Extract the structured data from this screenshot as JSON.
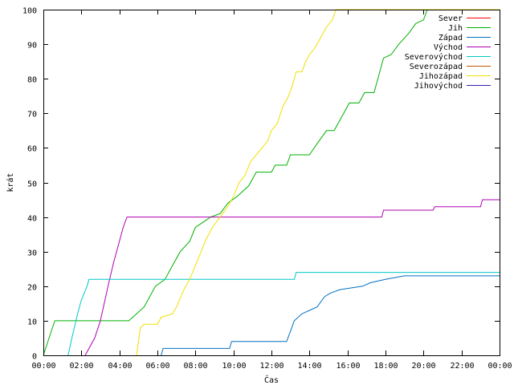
{
  "chart_data": {
    "type": "line",
    "title": "",
    "xlabel": "Čas",
    "ylabel": "krát",
    "xlim": [
      0,
      24
    ],
    "ylim": [
      0,
      100
    ],
    "x_ticks": [
      0,
      2,
      4,
      6,
      8,
      10,
      12,
      14,
      16,
      18,
      20,
      22,
      24
    ],
    "x_tick_labels": [
      "00:00",
      "02:00",
      "04:00",
      "06:00",
      "08:00",
      "10:00",
      "12:00",
      "14:00",
      "16:00",
      "18:00",
      "20:00",
      "22:00",
      "00:00"
    ],
    "y_ticks": [
      0,
      10,
      20,
      30,
      40,
      50,
      60,
      70,
      80,
      90,
      100
    ],
    "y_tick_labels": [
      "0",
      "10",
      "20",
      "30",
      "40",
      "50",
      "60",
      "70",
      "80",
      "90",
      "100"
    ],
    "grid": false,
    "legend_position": "top-right",
    "series": [
      {
        "name": "Sever",
        "color": "#ff0000",
        "points": []
      },
      {
        "name": "Jih",
        "color": "#00b000",
        "points": [
          [
            0,
            0
          ],
          [
            0.3,
            5
          ],
          [
            0.6,
            10
          ],
          [
            4.5,
            10
          ],
          [
            4.9,
            12
          ],
          [
            5.3,
            14
          ],
          [
            5.9,
            20
          ],
          [
            6.4,
            22
          ],
          [
            6.8,
            26
          ],
          [
            7.2,
            30
          ],
          [
            7.7,
            33
          ],
          [
            8.0,
            37
          ],
          [
            8.4,
            38.5
          ],
          [
            8.8,
            40
          ],
          [
            9.3,
            41
          ],
          [
            9.7,
            44
          ],
          [
            10.2,
            46
          ],
          [
            10.8,
            49
          ],
          [
            11.2,
            53
          ],
          [
            12.0,
            53
          ],
          [
            12.2,
            55
          ],
          [
            12.8,
            55
          ],
          [
            13.0,
            58
          ],
          [
            14.0,
            58
          ],
          [
            14.5,
            62
          ],
          [
            14.9,
            65
          ],
          [
            15.3,
            65
          ],
          [
            15.6,
            68
          ],
          [
            16.1,
            73
          ],
          [
            16.6,
            73
          ],
          [
            16.9,
            76
          ],
          [
            17.4,
            76
          ],
          [
            17.9,
            86
          ],
          [
            18.3,
            87
          ],
          [
            18.7,
            90
          ],
          [
            19.2,
            93
          ],
          [
            19.6,
            96
          ],
          [
            20.0,
            97
          ],
          [
            20.2,
            100
          ],
          [
            24,
            100
          ]
        ]
      },
      {
        "name": "Západ",
        "color": "#0070c0",
        "points": [
          [
            6.2,
            0
          ],
          [
            6.3,
            2
          ],
          [
            9.8,
            2
          ],
          [
            9.9,
            4
          ],
          [
            12.8,
            4
          ],
          [
            13.0,
            7
          ],
          [
            13.2,
            10
          ],
          [
            13.6,
            12
          ],
          [
            14.0,
            13
          ],
          [
            14.4,
            14
          ],
          [
            14.8,
            17
          ],
          [
            15.1,
            18
          ],
          [
            15.6,
            19
          ],
          [
            16.8,
            20
          ],
          [
            17.2,
            21
          ],
          [
            18.0,
            22
          ],
          [
            19.0,
            23
          ],
          [
            24,
            23
          ]
        ]
      },
      {
        "name": "Východ",
        "color": "#b000b0",
        "points": [
          [
            2.2,
            0
          ],
          [
            2.7,
            5
          ],
          [
            3.0,
            10
          ],
          [
            3.4,
            20
          ],
          [
            3.7,
            27
          ],
          [
            4.0,
            33
          ],
          [
            4.2,
            37
          ],
          [
            4.4,
            40
          ],
          [
            17.8,
            40
          ],
          [
            17.9,
            42
          ],
          [
            20.5,
            42
          ],
          [
            20.6,
            43
          ],
          [
            23.0,
            43
          ],
          [
            23.1,
            45
          ],
          [
            24,
            45
          ]
        ]
      },
      {
        "name": "Severovýchod",
        "color": "#00c8c8",
        "points": [
          [
            1.3,
            0
          ],
          [
            1.5,
            5
          ],
          [
            1.8,
            12
          ],
          [
            2.0,
            16
          ],
          [
            2.3,
            20
          ],
          [
            2.4,
            22
          ],
          [
            13.2,
            22
          ],
          [
            13.3,
            24
          ],
          [
            24,
            24
          ]
        ]
      },
      {
        "name": "Severozápad",
        "color": "#c05000",
        "points": []
      },
      {
        "name": "Jihozápad",
        "color": "#f0e000",
        "points": [
          [
            4.9,
            0
          ],
          [
            5.1,
            8
          ],
          [
            5.3,
            9
          ],
          [
            6.0,
            9
          ],
          [
            6.2,
            11
          ],
          [
            6.8,
            12
          ],
          [
            7.0,
            14
          ],
          [
            7.4,
            19
          ],
          [
            7.7,
            22
          ],
          [
            8.0,
            26
          ],
          [
            8.3,
            30
          ],
          [
            8.6,
            34
          ],
          [
            8.9,
            37
          ],
          [
            9.3,
            40
          ],
          [
            9.7,
            43
          ],
          [
            10.0,
            46
          ],
          [
            10.3,
            50
          ],
          [
            10.6,
            52
          ],
          [
            10.9,
            56
          ],
          [
            11.2,
            58
          ],
          [
            11.5,
            60
          ],
          [
            11.8,
            62
          ],
          [
            12.0,
            65
          ],
          [
            12.3,
            67
          ],
          [
            12.6,
            72
          ],
          [
            12.9,
            75
          ],
          [
            13.1,
            78
          ],
          [
            13.3,
            82
          ],
          [
            13.6,
            82
          ],
          [
            13.8,
            85
          ],
          [
            14.0,
            87
          ],
          [
            14.3,
            89
          ],
          [
            14.6,
            92
          ],
          [
            14.9,
            95
          ],
          [
            15.2,
            97
          ],
          [
            15.4,
            100
          ],
          [
            24,
            100
          ]
        ]
      },
      {
        "name": "Jihovýchod",
        "color": "#3020b0",
        "points": []
      }
    ]
  }
}
